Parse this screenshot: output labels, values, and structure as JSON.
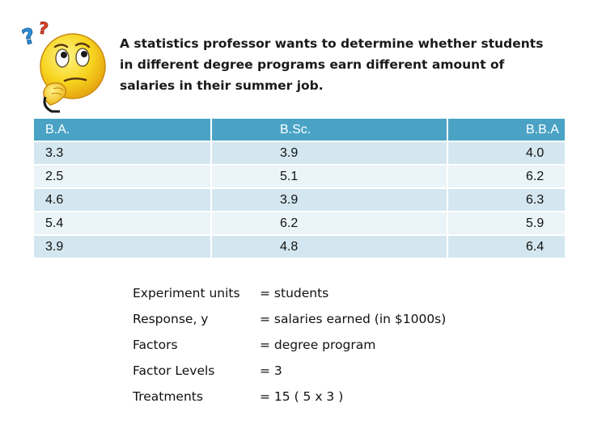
{
  "intro": {
    "line1": "A statistics professor wants to determine whether students",
    "line2": "in different degree programs earn different amount of",
    "line3": "salaries in their summer job."
  },
  "table": {
    "headers": [
      "B.A.",
      "B.Sc.",
      "B.B.A"
    ],
    "rows": [
      [
        "3.3",
        "3.9",
        "4.0"
      ],
      [
        "2.5",
        "5.1",
        "6.2"
      ],
      [
        "4.6",
        "3.9",
        "6.3"
      ],
      [
        "5.4",
        "6.2",
        "5.9"
      ],
      [
        "3.9",
        "4.8",
        "6.4"
      ]
    ]
  },
  "definitions": [
    {
      "term": "Experiment units",
      "value": "= students"
    },
    {
      "term": "Response, y",
      "value": "= salaries earned  (in $1000s)"
    },
    {
      "term": "Factors",
      "value": "= degree program"
    },
    {
      "term": "Factor Levels",
      "value": "= 3"
    },
    {
      "term": "Treatments",
      "value": "= 15  ( 5 x 3 )"
    }
  ],
  "colors": {
    "header_bg": "#4aa3c5",
    "row_odd": "#d4e7f0",
    "row_even": "#ebf4f8",
    "question_mark_blue": "#2f8fd8",
    "question_mark_red": "#e4452a",
    "emoji_yellow": "#f7d51f"
  },
  "icon": "thinking-face-icon"
}
